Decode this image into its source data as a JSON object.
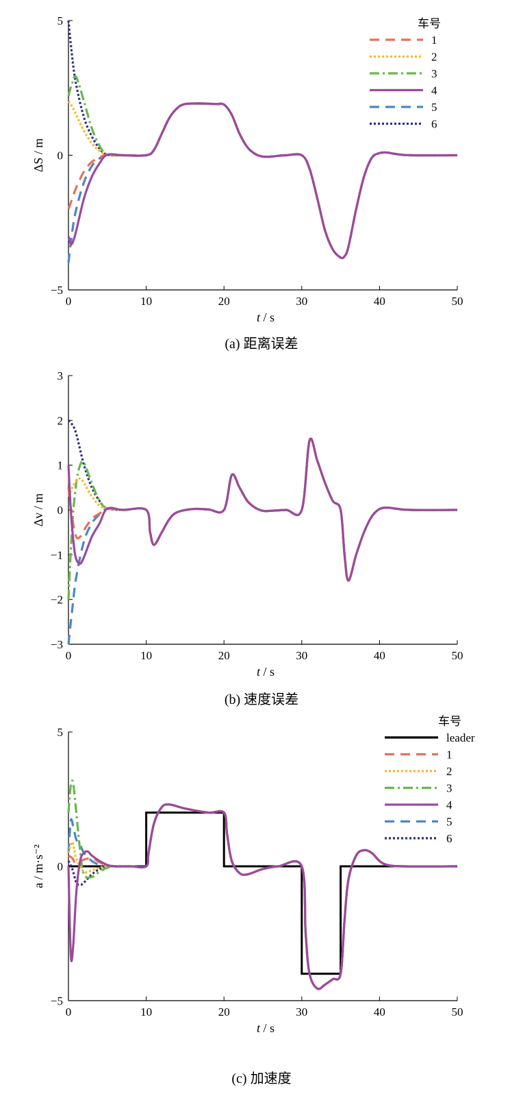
{
  "colors": {
    "leader": "#000000",
    "1": "#e8705a",
    "2": "#f5b82e",
    "3": "#66b94a",
    "4": "#9b4a9c",
    "5": "#4a86c8",
    "6": "#2e2c8c"
  },
  "chart_data": [
    {
      "type": "line",
      "caption": "(a)  距离误差",
      "xlabel_var": "t",
      "xlabel_unit": "/ s",
      "ylabel": "ΔS / m",
      "xlim": [
        0,
        50
      ],
      "ylim": [
        -5,
        5
      ],
      "xticks": [
        0,
        10,
        20,
        30,
        40,
        50
      ],
      "yticks": [
        -5,
        0,
        5
      ],
      "legend_title": "车号",
      "legend_position": "top-right",
      "grid": false,
      "common_x": [
        5,
        7,
        10,
        11,
        12,
        13,
        14,
        15,
        17,
        19,
        20,
        21,
        22,
        23,
        24,
        25,
        26,
        27,
        28,
        30,
        31,
        32,
        33,
        34,
        35,
        35.5,
        36,
        37,
        38,
        39,
        40,
        41,
        42,
        44,
        50
      ],
      "common_y": [
        0.02,
        0.0,
        0.0,
        0.2,
        0.8,
        1.4,
        1.75,
        1.9,
        1.92,
        1.9,
        1.88,
        1.5,
        0.8,
        0.3,
        0.05,
        -0.05,
        -0.05,
        -0.02,
        0.0,
        0.0,
        -0.5,
        -1.6,
        -2.8,
        -3.5,
        -3.8,
        -3.75,
        -3.4,
        -2.0,
        -0.8,
        -0.1,
        0.08,
        0.1,
        0.05,
        0.0,
        0.0
      ],
      "series": [
        {
          "name": "1",
          "x": [
            0,
            0.5,
            1,
            2,
            3,
            4
          ],
          "y": [
            -2.0,
            -1.6,
            -1.2,
            -0.6,
            -0.25,
            -0.08
          ]
        },
        {
          "name": "2",
          "x": [
            0,
            0.5,
            1,
            2,
            3,
            4
          ],
          "y": [
            2.0,
            1.8,
            1.5,
            0.9,
            0.45,
            0.15
          ]
        },
        {
          "name": "3",
          "x": [
            0,
            0.5,
            1,
            2,
            3,
            4
          ],
          "y": [
            2.2,
            2.7,
            2.9,
            2.0,
            1.0,
            0.35
          ]
        },
        {
          "name": "4",
          "x": [
            0,
            0.3,
            0.6,
            1,
            2,
            3,
            4
          ],
          "y": [
            -3.0,
            -3.3,
            -3.2,
            -2.8,
            -1.6,
            -0.8,
            -0.3
          ]
        },
        {
          "name": "5",
          "x": [
            0,
            0.5,
            1,
            2,
            3,
            4
          ],
          "y": [
            -4.0,
            -2.8,
            -2.0,
            -1.0,
            -0.4,
            -0.12
          ]
        },
        {
          "name": "6",
          "x": [
            0,
            0.5,
            1,
            2,
            3,
            4
          ],
          "y": [
            5.0,
            3.6,
            2.6,
            1.4,
            0.7,
            0.25
          ]
        }
      ]
    },
    {
      "type": "line",
      "caption": "(b)  速度误差",
      "xlabel_var": "t",
      "xlabel_unit": "/ s",
      "ylabel": "Δv / m",
      "xlim": [
        0,
        50
      ],
      "ylim": [
        -3,
        3
      ],
      "xticks": [
        0,
        10,
        20,
        30,
        40,
        50
      ],
      "yticks": [
        -3,
        -2,
        -1,
        0,
        1,
        2,
        3
      ],
      "grid": false,
      "common_x": [
        5,
        7,
        10,
        10.5,
        11,
        12,
        13,
        14,
        16,
        18,
        20,
        21,
        22,
        23,
        24,
        25,
        26,
        28,
        30,
        31,
        32,
        33,
        34,
        35,
        35.5,
        36,
        37,
        38,
        39,
        40,
        41,
        42,
        44,
        50
      ],
      "common_y": [
        0.03,
        0.0,
        0.0,
        -0.5,
        -0.78,
        -0.5,
        -0.2,
        -0.05,
        0.02,
        0.01,
        0.0,
        0.78,
        0.5,
        0.2,
        0.05,
        -0.02,
        -0.02,
        0.0,
        0.0,
        1.55,
        1.1,
        0.6,
        0.2,
        0.0,
        -1.0,
        -1.58,
        -1.0,
        -0.5,
        -0.15,
        0.02,
        0.05,
        0.03,
        0.0,
        0.0
      ],
      "series": [
        {
          "name": "1",
          "x": [
            0,
            0.5,
            1,
            1.5,
            2,
            3,
            4
          ],
          "y": [
            0.5,
            -0.2,
            -0.6,
            -0.6,
            -0.45,
            -0.2,
            -0.08
          ]
        },
        {
          "name": "2",
          "x": [
            0,
            0.5,
            1,
            1.5,
            2,
            3,
            4
          ],
          "y": [
            0.3,
            0.5,
            0.65,
            0.7,
            0.6,
            0.3,
            0.1
          ]
        },
        {
          "name": "3",
          "x": [
            0,
            0.5,
            1,
            1.5,
            2,
            3,
            4
          ],
          "y": [
            -2.0,
            -0.3,
            0.6,
            1.0,
            1.05,
            0.6,
            0.2
          ]
        },
        {
          "name": "4",
          "x": [
            0,
            0.3,
            0.7,
            1,
            1.5,
            2,
            3,
            4
          ],
          "y": [
            1.0,
            0.0,
            -0.8,
            -1.1,
            -1.2,
            -1.05,
            -0.6,
            -0.3
          ]
        },
        {
          "name": "5",
          "x": [
            0,
            0.5,
            1,
            2,
            3,
            4
          ],
          "y": [
            -3.0,
            -2.2,
            -1.5,
            -0.7,
            -0.3,
            -0.1
          ]
        },
        {
          "name": "6",
          "x": [
            0,
            0.5,
            1,
            2,
            3,
            4
          ],
          "y": [
            2.0,
            1.9,
            1.7,
            1.0,
            0.5,
            0.2
          ]
        }
      ]
    },
    {
      "type": "line",
      "caption": "(c)  加速度",
      "xlabel_var": "t",
      "xlabel_unit": "/ s",
      "ylabel": "a / m·s⁻²",
      "xlim": [
        0,
        50
      ],
      "ylim": [
        -5,
        5
      ],
      "xticks": [
        0,
        10,
        20,
        30,
        40,
        50
      ],
      "yticks": [
        -5,
        0,
        5
      ],
      "legend_title": "车号",
      "legend_position": "top-right",
      "grid": false,
      "leader": {
        "name": "leader",
        "x": [
          0,
          10,
          10,
          20,
          20,
          30,
          30,
          35,
          35,
          50
        ],
        "y": [
          0,
          0,
          2,
          2,
          0,
          0,
          -4,
          -4,
          0,
          0
        ]
      },
      "common_x": [
        6,
        8,
        10,
        10.3,
        11,
        12,
        13,
        15,
        18,
        20,
        20.4,
        21,
        22,
        23,
        25,
        27,
        30,
        30.5,
        31,
        32,
        33,
        34,
        35,
        35.5,
        36,
        37,
        38,
        39,
        40,
        41,
        43,
        50
      ],
      "common_y": [
        0.0,
        0.0,
        0.0,
        0.5,
        1.6,
        2.2,
        2.3,
        2.15,
        2.0,
        2.0,
        1.2,
        0.2,
        -0.25,
        -0.3,
        -0.1,
        0.0,
        0.0,
        -2.5,
        -4.0,
        -4.55,
        -4.4,
        -4.2,
        -4.0,
        -2.0,
        -0.5,
        0.4,
        0.6,
        0.5,
        0.2,
        0.05,
        0.0,
        0.0
      ],
      "series": [
        {
          "name": "1",
          "x": [
            0,
            0.5,
            1,
            2,
            3,
            4,
            5
          ],
          "y": [
            0.4,
            0.3,
            0.1,
            0.25,
            0.3,
            0.15,
            0.03
          ]
        },
        {
          "name": "2",
          "x": [
            0,
            0.5,
            1,
            2,
            3,
            4,
            5
          ],
          "y": [
            0.5,
            0.9,
            0.3,
            -0.2,
            -0.15,
            -0.05,
            0.0
          ]
        },
        {
          "name": "3",
          "x": [
            0,
            0.3,
            0.6,
            1,
            1.5,
            2,
            3,
            4,
            5
          ],
          "y": [
            2.0,
            3.0,
            3.1,
            2.0,
            0.6,
            -0.3,
            -0.4,
            -0.2,
            -0.05
          ]
        },
        {
          "name": "4",
          "x": [
            0,
            0.3,
            0.6,
            1,
            1.5,
            2,
            2.5,
            3,
            4,
            5
          ],
          "y": [
            0.0,
            -3.3,
            -3.0,
            -1.0,
            0.2,
            0.5,
            0.55,
            0.4,
            0.2,
            0.05
          ]
        },
        {
          "name": "5",
          "x": [
            0,
            0.3,
            0.6,
            1,
            1.5,
            2,
            3,
            4,
            5
          ],
          "y": [
            0.5,
            1.7,
            1.5,
            1.0,
            0.8,
            0.5,
            0.2,
            0.05,
            0.0
          ]
        },
        {
          "name": "6",
          "x": [
            0,
            0.5,
            1,
            1.5,
            2,
            3,
            4,
            5
          ],
          "y": [
            0.2,
            -0.1,
            -0.6,
            -0.7,
            -0.6,
            -0.3,
            -0.1,
            0.0
          ]
        }
      ]
    }
  ]
}
